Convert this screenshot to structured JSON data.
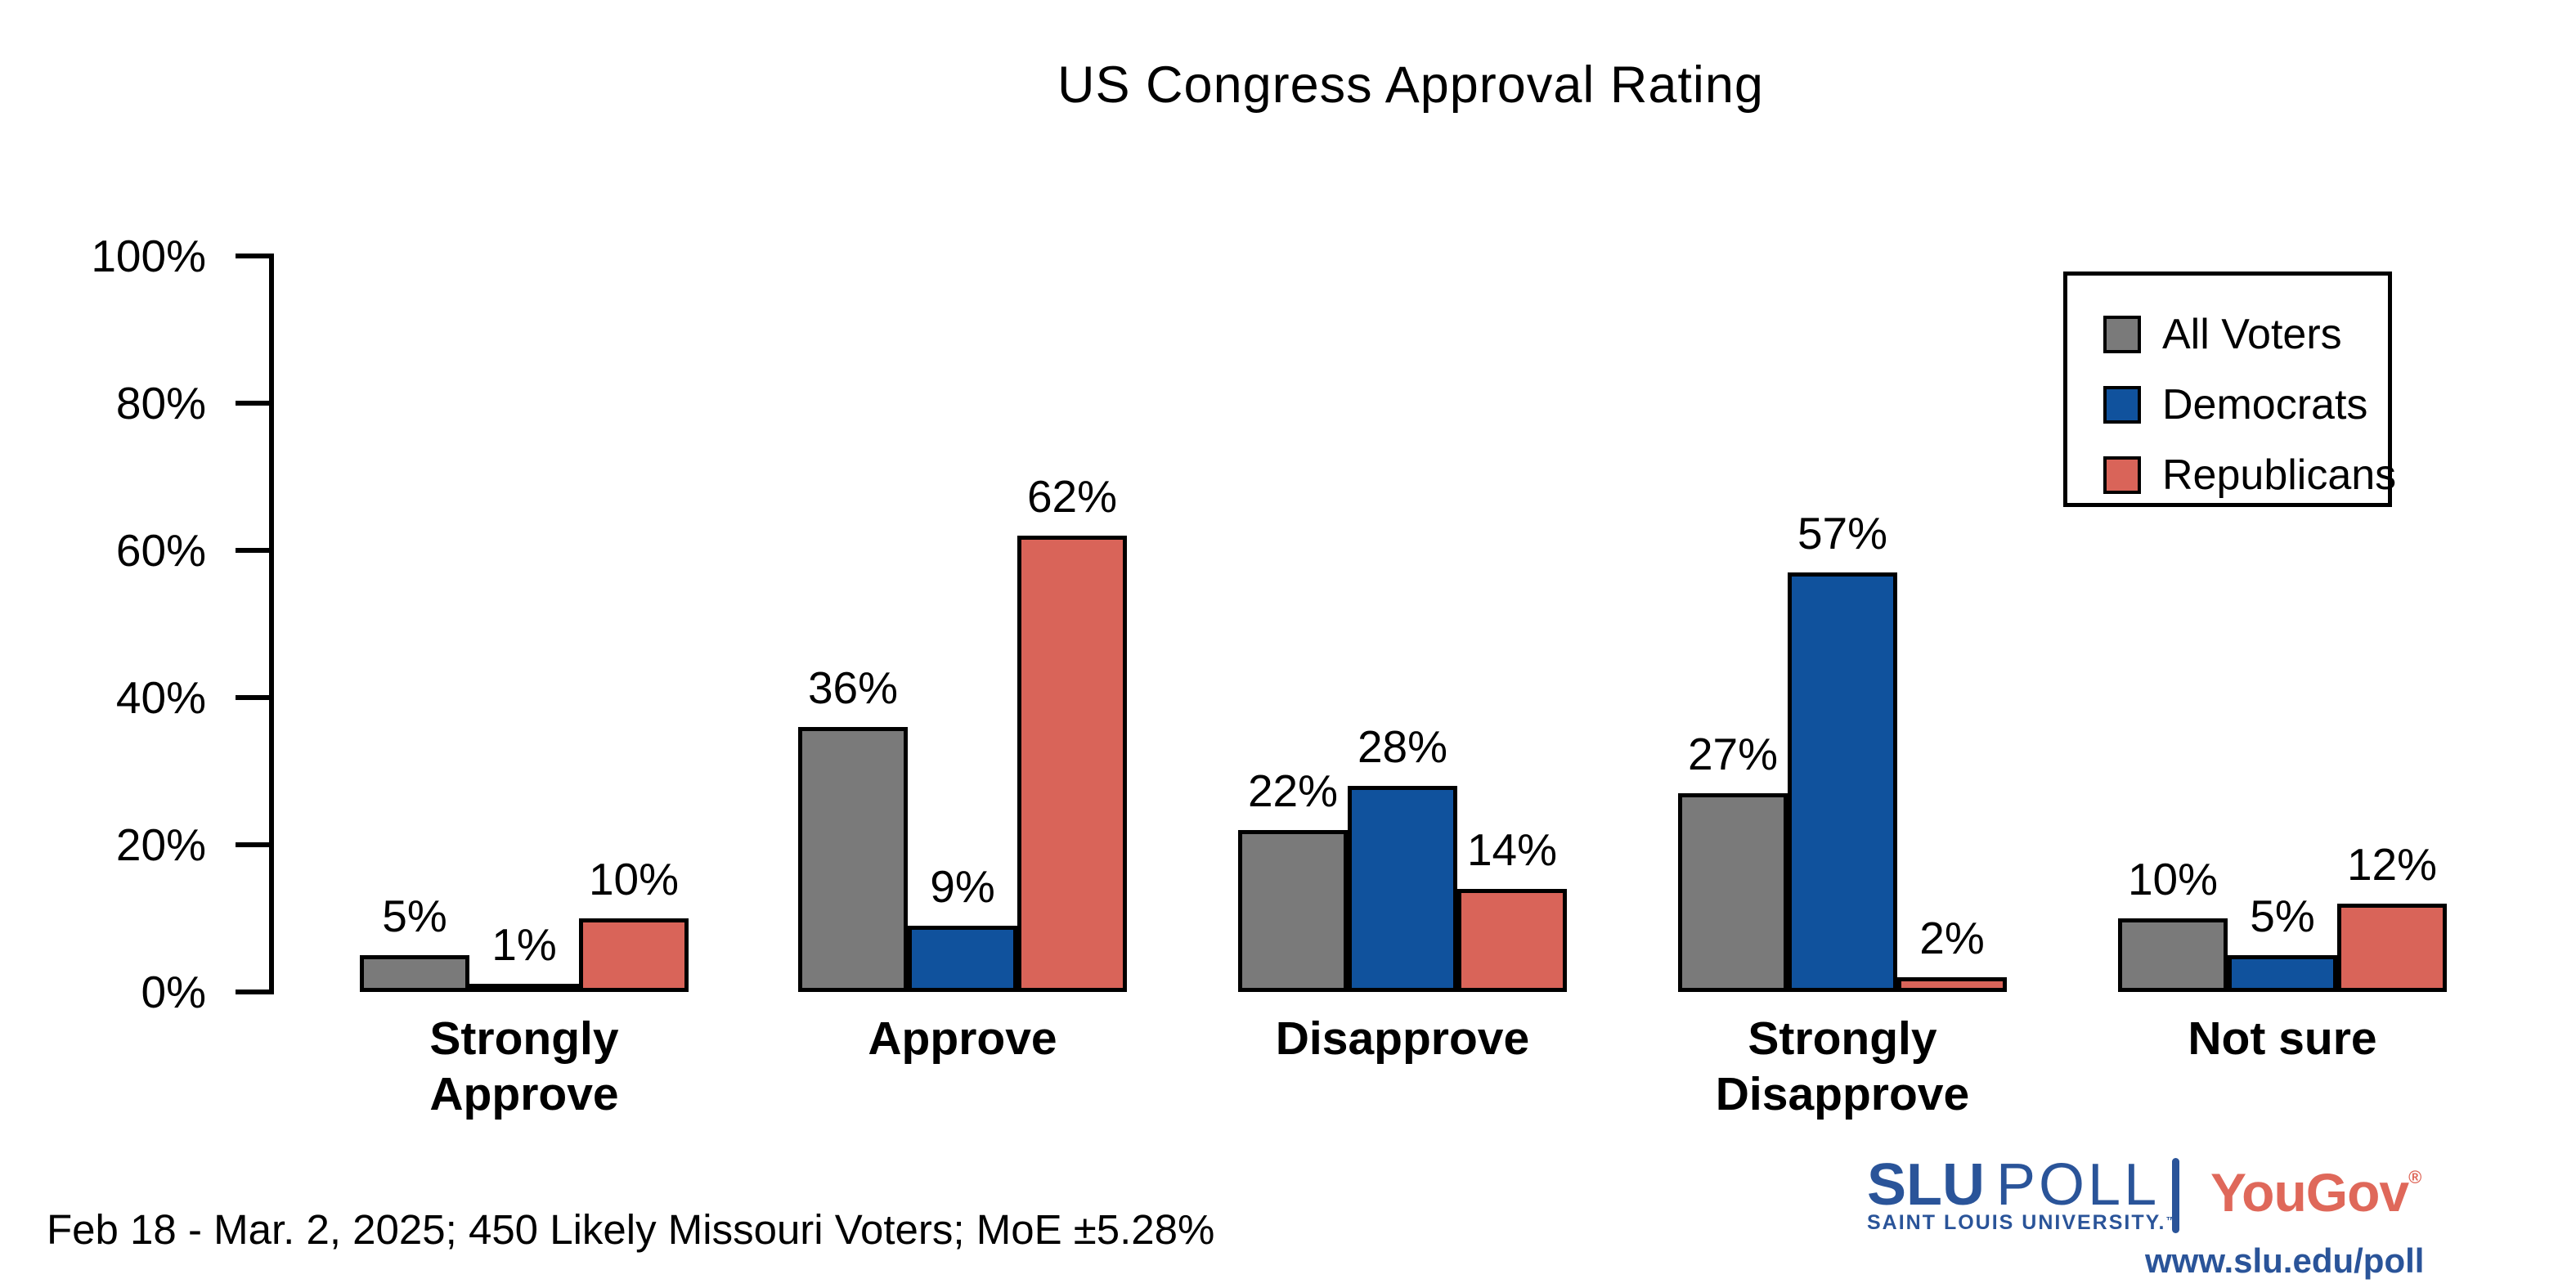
{
  "title": "US Congress Approval Rating",
  "chart_data": {
    "type": "bar",
    "categories": [
      "Strongly\nApprove",
      "Approve",
      "Disapprove",
      "Strongly\nDisapprove",
      "Not sure"
    ],
    "series": [
      {
        "name": "All Voters",
        "color": "#7A7A7A",
        "values": [
          5,
          36,
          22,
          27,
          10
        ]
      },
      {
        "name": "Democrats",
        "color": "#10529D",
        "values": [
          1,
          9,
          28,
          57,
          5
        ]
      },
      {
        "name": "Republicans",
        "color": "#D96459",
        "values": [
          10,
          62,
          14,
          2,
          12
        ]
      }
    ],
    "xlabel": "",
    "ylabel": "",
    "ylim": [
      0,
      100
    ],
    "yticks": [
      0,
      20,
      40,
      60,
      80,
      100
    ],
    "ytick_labels": [
      "0%",
      "20%",
      "40%",
      "60%",
      "80%",
      "100%"
    ],
    "value_labels": true,
    "value_label_suffix": "%",
    "grid": false,
    "legend_position": "top-right",
    "bar_outline_color": "#000000"
  },
  "footer": {
    "note": "Feb 18 - Mar. 2, 2025; 450 Likely Missouri Voters; MoE ±5.28%"
  },
  "branding": {
    "slu_word": "SLU",
    "poll_word": "POLL",
    "slu_subtitle": "SAINT LOUIS UNIVERSITY.",
    "slu_trademark": "™",
    "yougov": "YouGov",
    "yougov_registered": "®",
    "url": "www.slu.edu/poll",
    "slu_blue": "#2A5499",
    "yougov_red": "#DF685A"
  }
}
